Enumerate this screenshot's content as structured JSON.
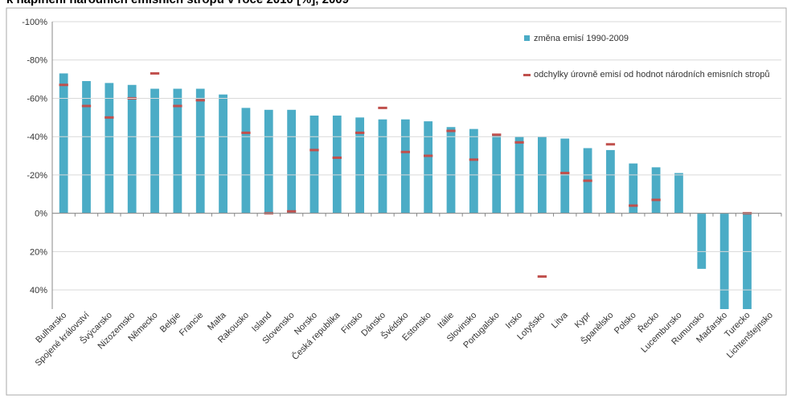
{
  "chart_data": {
    "type": "bar",
    "title": "k naplnění národních emisních stropů v roce 2010 [%], 2009",
    "categories": [
      "Bulharsko",
      "Spojené království",
      "Švýcarsko",
      "Nizozemsko",
      "Německo",
      "Belgie",
      "Francie",
      "Malta",
      "Rakousko",
      "Island",
      "Slovensko",
      "Norsko",
      "Česká republika",
      "Finsko",
      "Dánsko",
      "Švédsko",
      "Estonsko",
      "Itálie",
      "Slovinsko",
      "Portugalsko",
      "Irsko",
      "Lotyšsko",
      "Litva",
      "Kypr",
      "Španělsko",
      "Polsko",
      "Řecko",
      "Lucembursko",
      "Rumunsko",
      "Maďarsko",
      "Turecko",
      "Lichtenštejnsko"
    ],
    "series": [
      {
        "name": "změna emisí 1990-2009",
        "color": "#4bacc6",
        "mark": "bar",
        "values": [
          -73,
          -69,
          -68,
          -67,
          -65,
          -65,
          -65,
          -62,
          -55,
          -54,
          -54,
          -51,
          -51,
          -50,
          -49,
          -49,
          -48,
          -45,
          -44,
          -41,
          -40,
          -40,
          -39,
          -34,
          -33,
          -26,
          -24,
          -21,
          29,
          60,
          60,
          null
        ]
      },
      {
        "name": "odchylky úrovně emisí od hodnot národních emisních stropů",
        "color": "#c0504d",
        "mark": "dash",
        "values": [
          -67,
          -56,
          -50,
          -60,
          -73,
          -56,
          -59,
          null,
          -42,
          0,
          -1,
          -33,
          -29,
          -42,
          -55,
          -32,
          -30,
          -43,
          -28,
          -41,
          -37,
          33,
          -21,
          -17,
          -36,
          -4,
          -7,
          null,
          null,
          null,
          0,
          null
        ]
      }
    ],
    "ylim": [
      -100,
      50
    ],
    "y_reversed": true,
    "yticks": [
      {
        "value": -100,
        "label": "-100%"
      },
      {
        "value": -80,
        "label": "-80%"
      },
      {
        "value": -60,
        "label": "-60%"
      },
      {
        "value": -40,
        "label": "-40%"
      },
      {
        "value": -20,
        "label": "-20%"
      },
      {
        "value": 0,
        "label": "0%"
      },
      {
        "value": 20,
        "label": "20%"
      },
      {
        "value": 40,
        "label": "40%"
      }
    ],
    "grid": true,
    "legend": "top-right"
  }
}
